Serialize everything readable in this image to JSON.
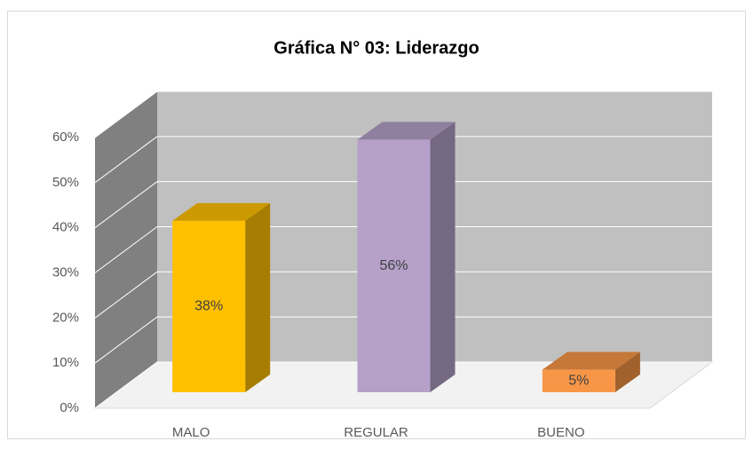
{
  "chart_data": {
    "type": "bar3d",
    "title": "Gráfica N° 03: Liderazgo",
    "categories": [
      "MALO",
      "REGULAR",
      "BUENO"
    ],
    "values": [
      38,
      56,
      5
    ],
    "value_labels": [
      "38%",
      "56%",
      "5%"
    ],
    "colors": [
      "#ffc000",
      "#b4a0c8",
      "#f79646"
    ],
    "ylim": [
      0,
      60
    ],
    "yticks": [
      {
        "value": 0,
        "label": "0%"
      },
      {
        "value": 10,
        "label": "10%"
      },
      {
        "value": 20,
        "label": "20%"
      },
      {
        "value": 30,
        "label": "30%"
      },
      {
        "value": 40,
        "label": "40%"
      },
      {
        "value": 50,
        "label": "50%"
      },
      {
        "value": 60,
        "label": "60%"
      }
    ],
    "grid": true
  }
}
